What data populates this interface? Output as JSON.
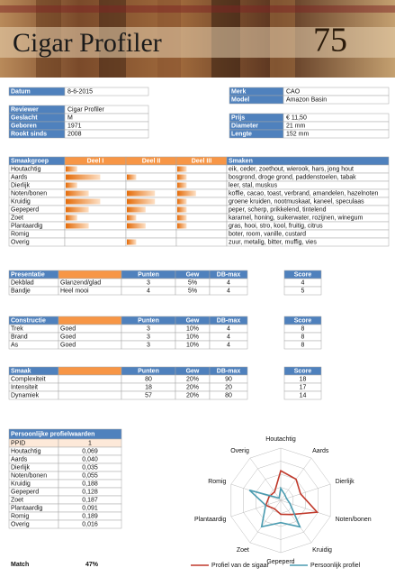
{
  "header": {
    "title": "Cigar Profiler",
    "score": "75"
  },
  "info": {
    "left_top": [
      [
        "Datum",
        "8-6-2015"
      ]
    ],
    "left": [
      [
        "Reviewer",
        "Cigar Profiler"
      ],
      [
        "Geslacht",
        "M"
      ],
      [
        "Geboren",
        "1971"
      ],
      [
        "Rookt sinds",
        "2008"
      ]
    ],
    "right_top": [
      [
        "Merk",
        "CAO"
      ],
      [
        "Model",
        "Amazon Basin"
      ]
    ],
    "right": [
      [
        "Prijs",
        "€ 11,50"
      ],
      [
        "Diameter",
        "21 mm"
      ],
      [
        "Lengte",
        "152 mm"
      ]
    ]
  },
  "flavors": {
    "headers": [
      "Smaakgroep",
      "Deel I",
      "Deel II",
      "Deel III",
      "Smaken"
    ],
    "rows": [
      {
        "group": "Houtachtig",
        "parts": [
          1,
          0,
          1
        ],
        "tastes": "eik, ceder, zoethout, wierook, hars, jong hout"
      },
      {
        "group": "Aards",
        "parts": [
          3,
          1,
          1
        ],
        "tastes": "bosgrond, droge grond, paddenstoelen, tabak"
      },
      {
        "group": "Dierlijk",
        "parts": [
          1,
          0,
          1
        ],
        "tastes": "leer, stal, muskus"
      },
      {
        "group": "Noten/bonen",
        "parts": [
          2,
          3,
          2
        ],
        "tastes": "koffie, cacao, toast, verbrand, amandelen, hazelnoten"
      },
      {
        "group": "Kruidig",
        "parts": [
          3,
          3,
          1
        ],
        "tastes": "groene kruiden, nootmuskaat, kaneel, speculaas"
      },
      {
        "group": "Gepeperd",
        "parts": [
          2,
          2,
          1
        ],
        "tastes": "peper, scherp, prikkelend, tintelend"
      },
      {
        "group": "Zoet",
        "parts": [
          1,
          1,
          1
        ],
        "tastes": "karamel, honing, suikerwater, rozijnen, winegum"
      },
      {
        "group": "Plantaardig",
        "parts": [
          2,
          2,
          1
        ],
        "tastes": "gras, hooi, stro, kool, fruitig, citrus"
      },
      {
        "group": "Romig",
        "parts": [
          0,
          0,
          0
        ],
        "tastes": "boter, room, vanille, custard"
      },
      {
        "group": "Overig",
        "parts": [
          0,
          1,
          0
        ],
        "tastes": "zuur, metalig, bitter, muffig, vies"
      }
    ]
  },
  "scores": [
    {
      "headers": [
        "Presentatie",
        "Punten",
        "Gew",
        "DB-max",
        "Score"
      ],
      "rows": [
        [
          "Dekblad",
          "Glanzend/glad",
          3,
          "5%",
          4,
          4
        ],
        [
          "Bandje",
          "Heel mooi",
          4,
          "5%",
          4,
          5
        ]
      ]
    },
    {
      "headers": [
        "Constructie",
        "Punten",
        "Gew",
        "DB-max",
        "Score"
      ],
      "rows": [
        [
          "Trek",
          "Goed",
          3,
          "10%",
          4,
          8
        ],
        [
          "Brand",
          "Goed",
          3,
          "10%",
          4,
          8
        ],
        [
          "As",
          "Goed",
          3,
          "10%",
          4,
          8
        ]
      ]
    },
    {
      "headers": [
        "Smaak",
        "Punten",
        "Gew",
        "DB-max",
        "Score"
      ],
      "rows": [
        [
          "Complexiteit",
          80,
          "20%",
          90,
          18
        ],
        [
          "Intensiteit",
          18,
          "20%",
          20,
          17
        ],
        [
          "Dynamiek",
          57,
          "20%",
          80,
          14
        ]
      ]
    }
  ],
  "profile": {
    "title": "Persoonlijke profielwaarden",
    "rows": [
      [
        "PPID",
        1
      ],
      [
        "Houtachtig",
        "0,069"
      ],
      [
        "Aards",
        "0,040"
      ],
      [
        "Dierlijk",
        "0,035"
      ],
      [
        "Noten/bonen",
        "0,055"
      ],
      [
        "Kruidig",
        "0,188"
      ],
      [
        "Gepeperd",
        "0,128"
      ],
      [
        "Zoet",
        "0,187"
      ],
      [
        "Plantaardig",
        "0,091"
      ],
      [
        "Romig",
        "0,189"
      ],
      [
        "Overig",
        "0,016"
      ]
    ]
  },
  "match": {
    "label": "Match",
    "value": "47%"
  },
  "chart_data": {
    "type": "radar",
    "categories": [
      "Houtachtig",
      "Aards",
      "Dierlijk",
      "Noten/bonen",
      "Kruidig",
      "Gepeperd",
      "Zoet",
      "Plantaardig",
      "Romig",
      "Overig"
    ],
    "rlim": [
      0,
      0.3
    ],
    "series": [
      {
        "name": "Profiel van de sigaar",
        "color": "#c0392b",
        "values": [
          0.17,
          0.15,
          0.12,
          0.22,
          0.1,
          0.08,
          0.06,
          0.09,
          0.07,
          0.06
        ]
      },
      {
        "name": "Persoonlijk profiel",
        "color": "#4a9bb0",
        "values": [
          0.069,
          0.04,
          0.035,
          0.055,
          0.188,
          0.128,
          0.187,
          0.091,
          0.189,
          0.016
        ]
      }
    ]
  }
}
